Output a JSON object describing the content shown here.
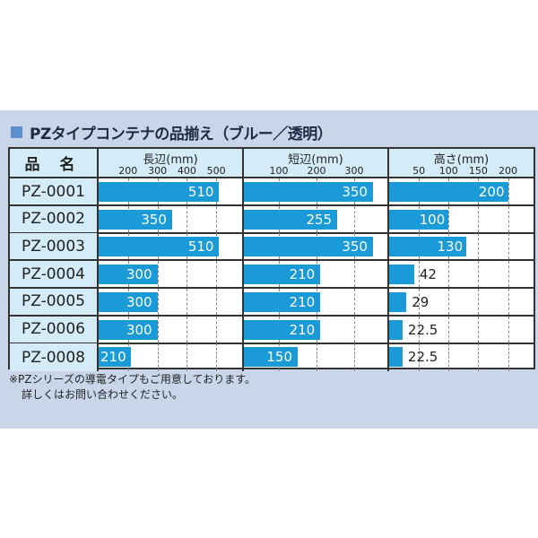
{
  "title": "PZタイプコンテナの品揃え（ブルー／透明）",
  "name_header": "品 名",
  "note": [
    "※PZシリーズの導電タイプもご用意しております。",
    "詳しくはお問い合わせください。"
  ],
  "colors": {
    "bar": "#1a9ad6",
    "header": "#d4ebf8",
    "panel": "#c9d6ea"
  },
  "chart_data": {
    "type": "bar",
    "orientation": "horizontal",
    "categories": [
      "PZ-0001",
      "PZ-0002",
      "PZ-0003",
      "PZ-0004",
      "PZ-0005",
      "PZ-0006",
      "PZ-0008"
    ],
    "panels": [
      {
        "title": "長辺(mm)",
        "ticks": [
          200,
          300,
          400,
          500
        ],
        "xlim": [
          100,
          594
        ],
        "values": [
          510,
          350,
          510,
          300,
          300,
          300,
          210
        ],
        "labels": [
          "510",
          "350",
          "510",
          "300",
          "300",
          "300",
          "210"
        ]
      },
      {
        "title": "短辺(mm)",
        "ticks": [
          100,
          200,
          300
        ],
        "xlim": [
          7,
          393
        ],
        "values": [
          350,
          255,
          350,
          210,
          210,
          210,
          150
        ],
        "labels": [
          "350",
          "255",
          "350",
          "210",
          "210",
          "210",
          "150"
        ]
      },
      {
        "title": "高さ(mm)",
        "ticks": [
          50,
          100,
          150,
          200
        ],
        "xlim": [
          0,
          243
        ],
        "values": [
          200,
          100,
          130,
          42,
          29,
          22.5,
          22.5
        ],
        "labels": [
          "200",
          "100",
          "130",
          "42",
          "29",
          "22.5",
          "22.5"
        ]
      }
    ],
    "grid": true
  }
}
